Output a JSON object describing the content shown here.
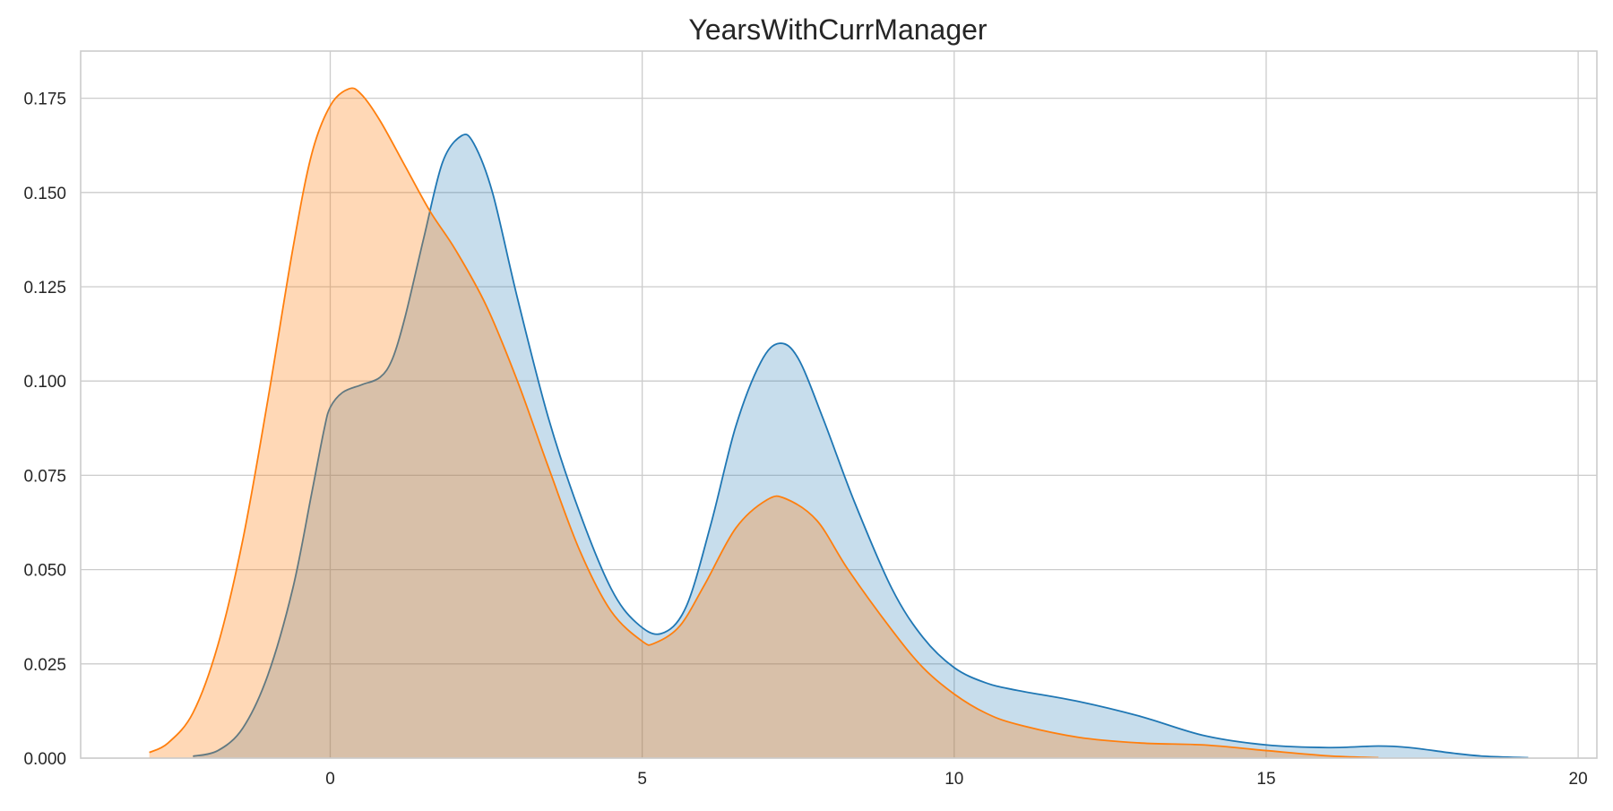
{
  "chart_data": {
    "type": "area",
    "title": "YearsWithCurrManager",
    "xlabel": "",
    "ylabel": "",
    "xlim": [
      -4.0,
      20.3
    ],
    "ylim": [
      0,
      0.1875
    ],
    "x_ticks": [
      0,
      5,
      10,
      15,
      20
    ],
    "x_tick_labels": [
      "0",
      "5",
      "10",
      "15",
      "20"
    ],
    "y_ticks": [
      0,
      0.025,
      0.05,
      0.075,
      0.1,
      0.125,
      0.15,
      0.175
    ],
    "y_tick_labels": [
      "0.000",
      "0.025",
      "0.050",
      "0.075",
      "0.100",
      "0.125",
      "0.150",
      "0.175"
    ],
    "grid": true,
    "legend": "none",
    "series": [
      {
        "color": "#1f77b4",
        "fill_opacity": 0.25,
        "points": [
          [
            -2.2,
            0.0005
          ],
          [
            -1.8,
            0.002
          ],
          [
            -1.4,
            0.008
          ],
          [
            -1.0,
            0.022
          ],
          [
            -0.6,
            0.045
          ],
          [
            -0.3,
            0.07
          ],
          [
            -0.1,
            0.087
          ],
          [
            0.0,
            0.093
          ],
          [
            0.2,
            0.097
          ],
          [
            0.5,
            0.099
          ],
          [
            0.8,
            0.101
          ],
          [
            1.0,
            0.106
          ],
          [
            1.2,
            0.117
          ],
          [
            1.5,
            0.138
          ],
          [
            1.8,
            0.158
          ],
          [
            2.1,
            0.165
          ],
          [
            2.3,
            0.163
          ],
          [
            2.6,
            0.15
          ],
          [
            3.0,
            0.122
          ],
          [
            3.5,
            0.09
          ],
          [
            4.0,
            0.065
          ],
          [
            4.5,
            0.045
          ],
          [
            4.9,
            0.036
          ],
          [
            5.3,
            0.033
          ],
          [
            5.7,
            0.04
          ],
          [
            6.1,
            0.062
          ],
          [
            6.5,
            0.088
          ],
          [
            6.9,
            0.105
          ],
          [
            7.2,
            0.11
          ],
          [
            7.5,
            0.106
          ],
          [
            7.9,
            0.09
          ],
          [
            8.4,
            0.068
          ],
          [
            9.0,
            0.045
          ],
          [
            9.5,
            0.032
          ],
          [
            10.0,
            0.024
          ],
          [
            10.5,
            0.02
          ],
          [
            11.0,
            0.018
          ],
          [
            12.0,
            0.015
          ],
          [
            13.0,
            0.011
          ],
          [
            14.0,
            0.006
          ],
          [
            15.0,
            0.0035
          ],
          [
            16.0,
            0.0028
          ],
          [
            16.8,
            0.0032
          ],
          [
            17.3,
            0.0028
          ],
          [
            18.0,
            0.0013
          ],
          [
            18.5,
            0.0005
          ],
          [
            19.2,
            0.0001
          ]
        ]
      },
      {
        "color": "#ff7f0e",
        "fill_opacity": 0.3,
        "points": [
          [
            -2.9,
            0.0015
          ],
          [
            -2.6,
            0.004
          ],
          [
            -2.2,
            0.012
          ],
          [
            -1.8,
            0.03
          ],
          [
            -1.4,
            0.058
          ],
          [
            -1.0,
            0.095
          ],
          [
            -0.6,
            0.135
          ],
          [
            -0.3,
            0.16
          ],
          [
            0.0,
            0.173
          ],
          [
            0.3,
            0.1775
          ],
          [
            0.5,
            0.176
          ],
          [
            0.8,
            0.169
          ],
          [
            1.2,
            0.157
          ],
          [
            1.6,
            0.145
          ],
          [
            2.0,
            0.135
          ],
          [
            2.5,
            0.12
          ],
          [
            3.0,
            0.1
          ],
          [
            3.5,
            0.077
          ],
          [
            4.0,
            0.055
          ],
          [
            4.5,
            0.039
          ],
          [
            5.0,
            0.031
          ],
          [
            5.2,
            0.0305
          ],
          [
            5.6,
            0.035
          ],
          [
            6.0,
            0.046
          ],
          [
            6.5,
            0.061
          ],
          [
            7.0,
            0.0685
          ],
          [
            7.3,
            0.0688
          ],
          [
            7.8,
            0.063
          ],
          [
            8.3,
            0.05
          ],
          [
            9.0,
            0.034
          ],
          [
            9.5,
            0.024
          ],
          [
            10.0,
            0.017
          ],
          [
            10.5,
            0.012
          ],
          [
            11.0,
            0.009
          ],
          [
            12.0,
            0.0055
          ],
          [
            13.0,
            0.004
          ],
          [
            14.0,
            0.0035
          ],
          [
            15.0,
            0.002
          ],
          [
            16.0,
            0.0006
          ],
          [
            16.8,
            0.0001
          ]
        ]
      }
    ]
  }
}
